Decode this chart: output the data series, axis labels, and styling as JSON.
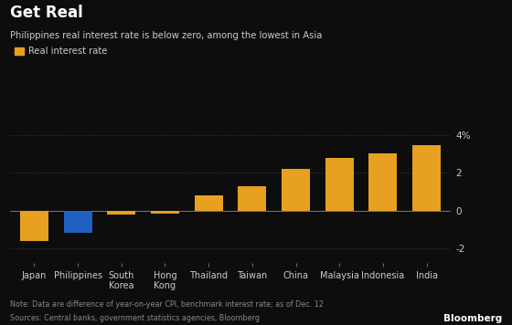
{
  "categories": [
    "Japan",
    "Philippines",
    "South\nKorea",
    "Hong\nKong",
    "Thailand",
    "Taiwan",
    "China",
    "Malaysia",
    "Indonesia",
    "India"
  ],
  "values": [
    -1.6,
    -1.2,
    -0.2,
    -0.15,
    0.8,
    1.3,
    2.2,
    2.8,
    3.05,
    3.5
  ],
  "bar_colors": [
    "#E8A020",
    "#2060C0",
    "#E8A020",
    "#E8A020",
    "#E8A020",
    "#E8A020",
    "#E8A020",
    "#E8A020",
    "#E8A020",
    "#E8A020"
  ],
  "title": "Get Real",
  "subtitle": "Philippines real interest rate is below zero, among the lowest in Asia",
  "legend_label": "Real interest rate",
  "legend_color": "#E8A020",
  "ylabel_ticks": [
    -2,
    0,
    2,
    4
  ],
  "ylim": [
    -2.8,
    4.8
  ],
  "note": "Note: Data are difference of year-on-year CPI, benchmark interest rate; as of Dec. 12",
  "sources": "Sources: Central banks, government statistics agencies, Bloomberg",
  "bloomberg_label": "Bloomberg",
  "background_color": "#0D0D0D",
  "text_color": "#CCCCCC",
  "grid_color": "#404040"
}
